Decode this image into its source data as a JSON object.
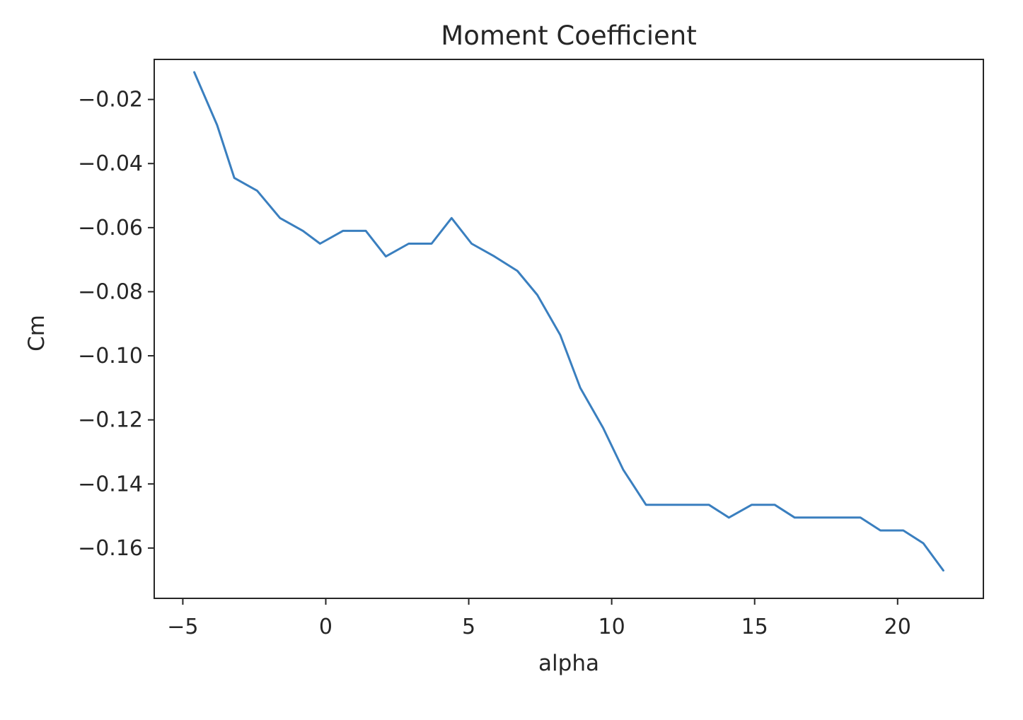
{
  "chart_data": {
    "type": "line",
    "title": "Moment Coefficient",
    "xlabel": "alpha",
    "ylabel": "Cm",
    "xlim": [
      -6,
      23
    ],
    "ylim": [
      -0.1757,
      -0.0075
    ],
    "xticks": [
      -5,
      0,
      5,
      10,
      15,
      20
    ],
    "xtick_labels": [
      "−5",
      "0",
      "5",
      "10",
      "15",
      "20"
    ],
    "yticks": [
      -0.02,
      -0.04,
      -0.06,
      -0.08,
      -0.1,
      -0.12,
      -0.14,
      -0.16
    ],
    "ytick_labels": [
      "−0.02",
      "−0.04",
      "−0.06",
      "−0.08",
      "−0.10",
      "−0.12",
      "−0.14",
      "−0.16"
    ],
    "grid": false,
    "line_color": "#3a7fbf",
    "series": [
      {
        "x": [
          -4.6,
          -3.8,
          -3.2,
          -2.4,
          -1.6,
          -0.8,
          -0.2,
          0.6,
          1.4,
          2.1,
          2.9,
          3.7,
          4.4,
          5.1,
          5.9,
          6.7,
          7.4,
          8.2,
          8.9,
          9.7,
          10.4,
          11.2,
          11.9,
          12.7,
          13.4,
          14.1,
          14.9,
          15.7,
          16.4,
          17.2,
          17.9,
          18.7,
          19.4,
          20.2,
          20.9,
          21.6
        ],
        "y": [
          -0.0115,
          -0.028,
          -0.0445,
          -0.0485,
          -0.057,
          -0.061,
          -0.065,
          -0.061,
          -0.061,
          -0.069,
          -0.065,
          -0.065,
          -0.057,
          -0.065,
          -0.069,
          -0.0735,
          -0.081,
          -0.0935,
          -0.11,
          -0.1225,
          -0.1355,
          -0.1465,
          -0.1465,
          -0.1465,
          -0.1465,
          -0.1505,
          -0.1465,
          -0.1465,
          -0.1505,
          -0.1505,
          -0.1505,
          -0.1505,
          -0.1545,
          -0.1545,
          -0.1585,
          -0.167
        ]
      }
    ]
  }
}
